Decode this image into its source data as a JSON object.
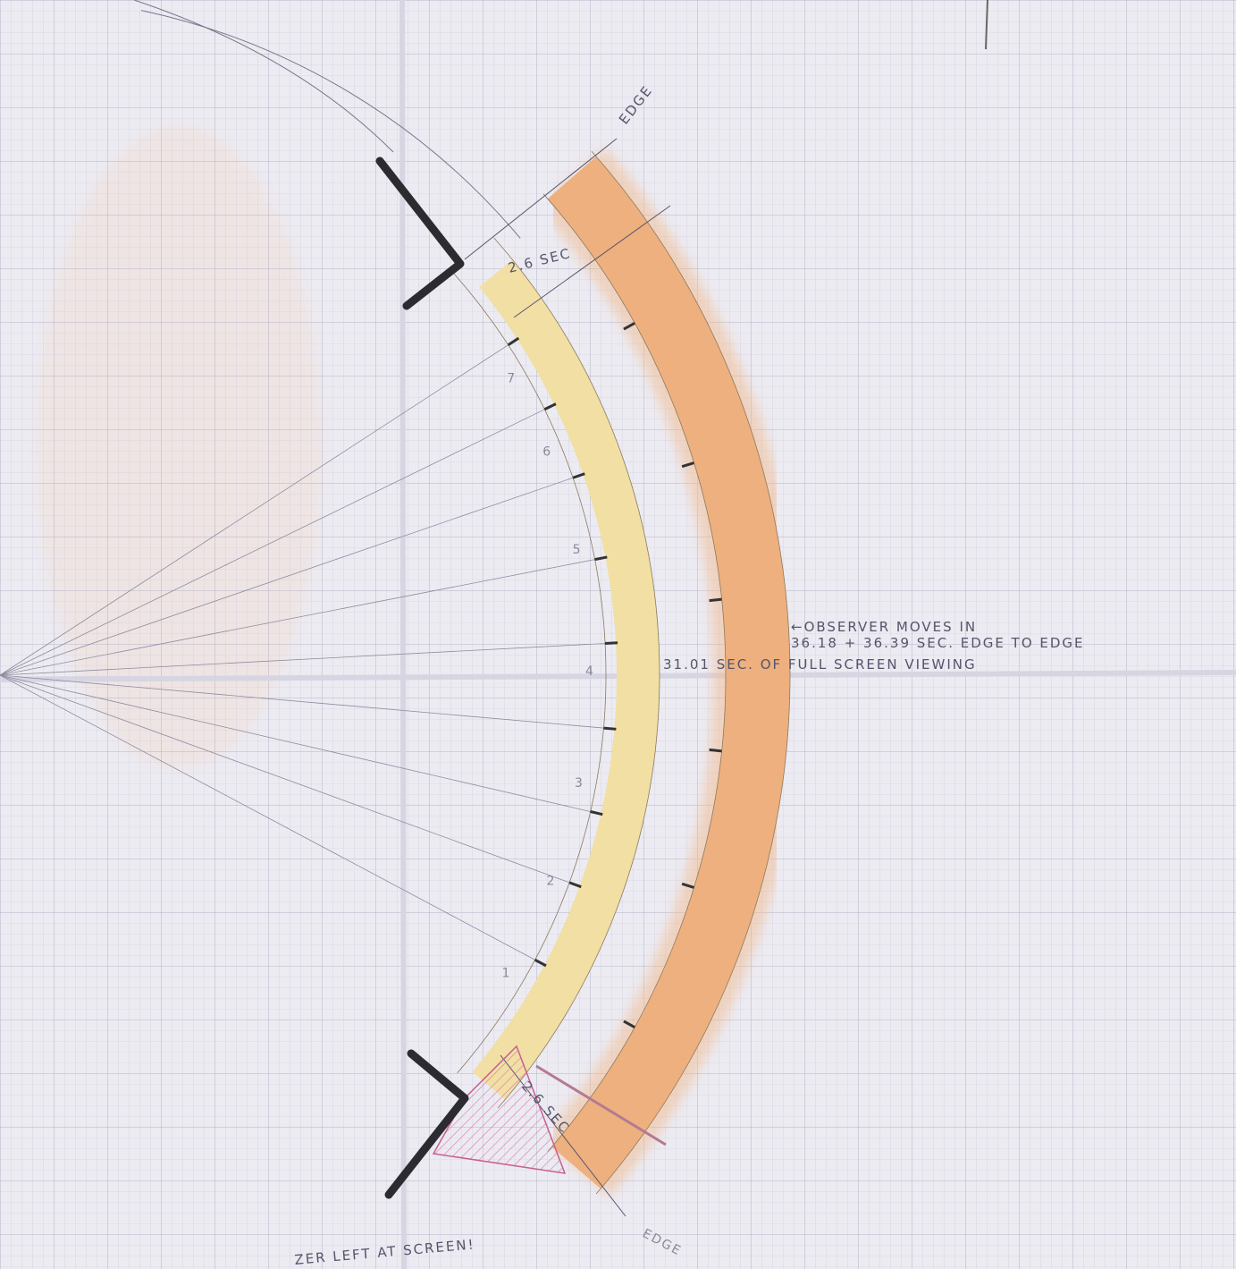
{
  "labels": {
    "edge_top": "EDGE",
    "gap_top": "2.6 SEC",
    "observer": "←OBSERVER MOVES IN",
    "duration": "36.18 + 36.39 SEC. EDGE TO EDGE",
    "full_screen": "31.01 SEC. OF FULL SCREEN VIEWING",
    "gap_bottom": "2.6 SEC",
    "edge_bottom": "EDGE",
    "footnote": "ZER LEFT AT SCREEN!"
  },
  "seat_numbers": [
    "7",
    "6",
    "5",
    "4",
    "3",
    "2",
    "1"
  ]
}
